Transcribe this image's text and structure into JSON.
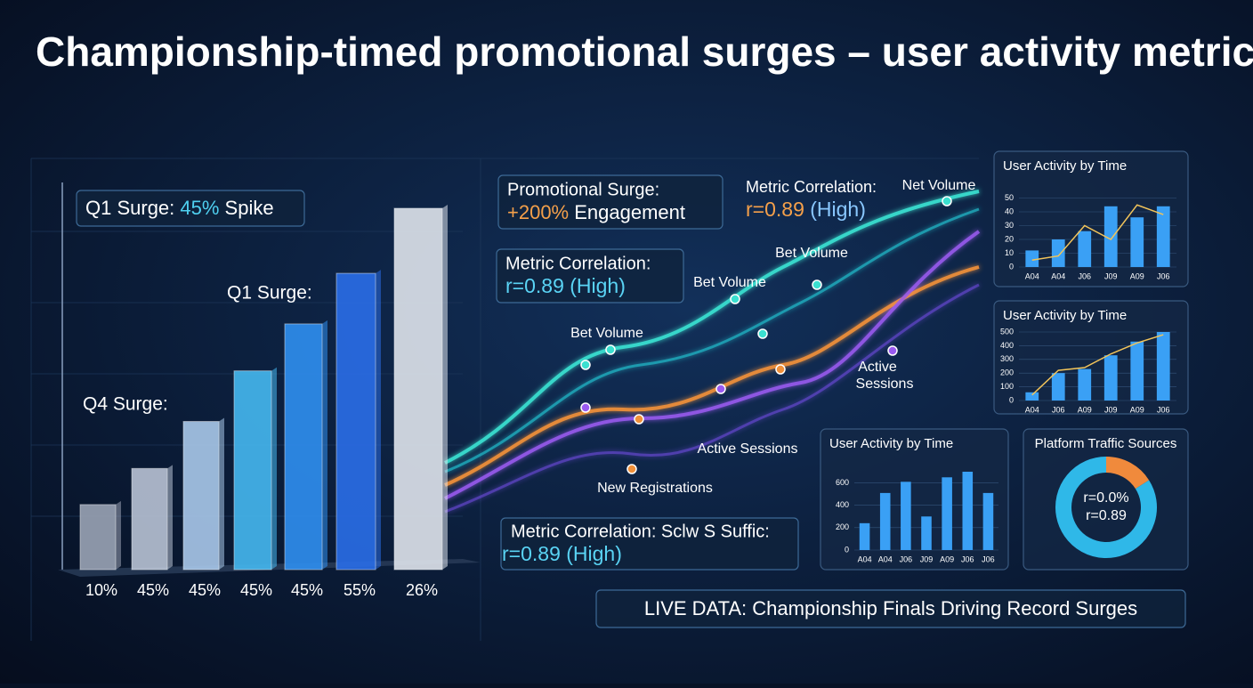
{
  "title": "Championship-timed promotional surges – user activity metrics",
  "annotations": {
    "q1_spike": [
      "Q1 Surge: ",
      "45%",
      " Spike"
    ],
    "q1_surge": "Q1 Surge:",
    "q4_surge": "Q4 Surge:"
  },
  "callouts": [
    {
      "line1": "Promotional Surge:",
      "line2": [
        "+200%",
        " Engagement"
      ]
    },
    {
      "line1": "Metric Correlation:",
      "line2": [
        "r=0.89",
        " (High)"
      ]
    },
    {
      "line1": "Metric Correlation:",
      "line2": [
        "r=0.89 (High)"
      ]
    },
    {
      "line1": "Metric Correlation: Sclw S Suffic:",
      "line2": [
        "r=0.89 (High)"
      ]
    }
  ],
  "wave_labels": [
    "Net Volume",
    "Bet Volume",
    "Bet Volume",
    "Bet Volume",
    "Active",
    "Sessions",
    "Active Sessions",
    "New Registrations"
  ],
  "chart_data": [
    {
      "type": "bar3d",
      "categories": [
        "10%",
        "45%",
        "45%",
        "45%",
        "45%",
        "55%",
        "26%"
      ],
      "values": [
        18,
        28,
        41,
        55,
        68,
        82,
        100
      ],
      "colors": [
        "#9aa3b5",
        "#b8c2d4",
        "#a9c8ea",
        "#45b8f0",
        "#2f8ff0",
        "#2a6ee8",
        "#dfe4ec"
      ]
    },
    {
      "type": "bar",
      "title": "User Activity by Time",
      "categories": [
        "A04",
        "A04",
        "J06",
        "J09",
        "A09",
        "J06"
      ],
      "ylim": [
        0,
        60
      ],
      "yticks": [
        0,
        10,
        20,
        30,
        40,
        50
      ],
      "series": [
        {
          "color": "#3aa0f5",
          "values": [
            12,
            20,
            26,
            44,
            36,
            44
          ]
        },
        {
          "type": "line",
          "color": "#f2c45a",
          "values": [
            5,
            8,
            30,
            20,
            45,
            38
          ]
        }
      ]
    },
    {
      "type": "bar",
      "title": "User Activity by Time",
      "categories": [
        "A04",
        "J06",
        "A09",
        "J09",
        "A09",
        "J06"
      ],
      "ylim": [
        0,
        500
      ],
      "yticks": [
        0,
        100,
        200,
        300,
        400,
        500
      ],
      "series": [
        {
          "color": "#3aa0f5",
          "values": [
            60,
            200,
            230,
            330,
            430,
            500
          ]
        },
        {
          "type": "line",
          "color": "#f2c45a",
          "values": [
            40,
            220,
            240,
            340,
            420,
            480
          ]
        }
      ]
    },
    {
      "type": "bar",
      "title": "User Activity by Time",
      "categories": [
        "A04",
        "A04",
        "J06",
        "J09",
        "A09",
        "J06",
        "J06"
      ],
      "ylim": [
        0,
        700
      ],
      "yticks": [
        0,
        200,
        400,
        600
      ],
      "series": [
        {
          "color": "#3aa0f5",
          "values": [
            240,
            510,
            610,
            300,
            650,
            700,
            510
          ]
        }
      ]
    },
    {
      "type": "donut",
      "title": "Platform Traffic Sources",
      "center": [
        "r=0.0%",
        "r=0.89"
      ],
      "values": [
        16,
        84
      ],
      "colors": [
        "#f08a3c",
        "#2fb8e8"
      ]
    }
  ],
  "footer": "LIVE DATA: Championship Finals Driving Record Surges"
}
